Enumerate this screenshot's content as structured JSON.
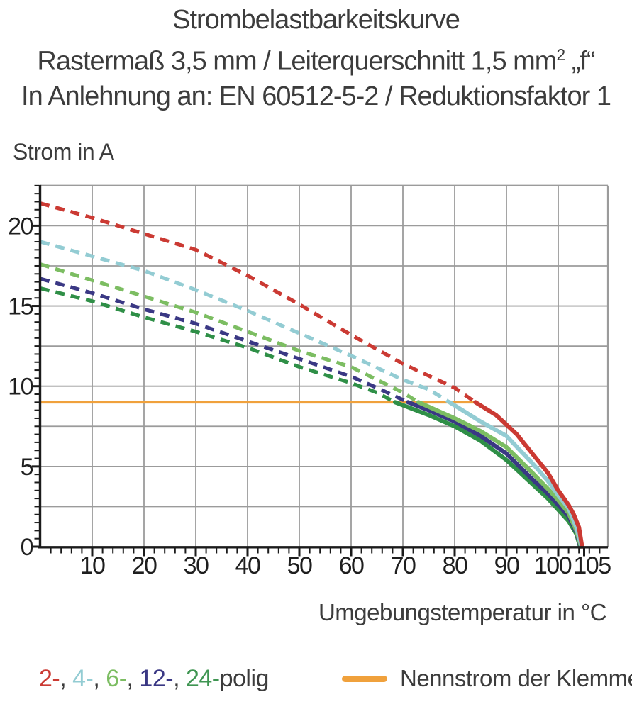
{
  "title": {
    "line1": "Strombelastbarkeitskurve",
    "line2_pre": "Rastermaß 3,5 mm / Leiterquerschnitt 1,5 mm",
    "line2_sup": "2",
    "line2_post": " „f“",
    "line3": "In Anlehnung an: EN 60512-5-2 / Reduktionsfaktor 1"
  },
  "chart_data": {
    "type": "line",
    "title": "Strombelastbarkeitskurve",
    "xlabel": "Umgebungstemperatur in °C",
    "ylabel": "Strom in A",
    "xlim": [
      0,
      109.6
    ],
    "ylim": [
      0,
      22.5
    ],
    "x_major_ticks": [
      10,
      20,
      30,
      40,
      50,
      60,
      70,
      80,
      90,
      100,
      105
    ],
    "x_gridlines": [
      10,
      20,
      30,
      40,
      50,
      60,
      70,
      80,
      90,
      100
    ],
    "x_minor_step": 2,
    "y_major_ticks": [
      0,
      5,
      10,
      15,
      20
    ],
    "y_gridlines": [
      2.5,
      5,
      7.5,
      10,
      12.5,
      15,
      17.5,
      20,
      22.5
    ],
    "y_minor_step": 0.5,
    "grid": true,
    "grid_color": "#9b9b9b",
    "axis_color": "#1b1b1b",
    "nominal_current": {
      "label": "Nennstrom der Klemme",
      "value_a": 9,
      "temp_start": 0,
      "temp_end": 84,
      "color": "#f0a13c"
    },
    "series": [
      {
        "name": "24-polig",
        "poles": 24,
        "color": "#2f8f47",
        "dashed": [
          [
            0,
            16.1
          ],
          [
            10,
            15.3
          ],
          [
            20,
            14.3
          ],
          [
            30,
            13.4
          ],
          [
            40,
            12.4
          ],
          [
            50,
            11.2
          ],
          [
            60,
            10.2
          ],
          [
            65,
            9.6
          ],
          [
            68.5,
            9.0
          ]
        ],
        "solid": [
          [
            68.5,
            9.0
          ],
          [
            75,
            8.2
          ],
          [
            80,
            7.5
          ],
          [
            85,
            6.6
          ],
          [
            90,
            5.4
          ],
          [
            95,
            3.9
          ],
          [
            98,
            3.0
          ],
          [
            100,
            2.3
          ],
          [
            102,
            1.6
          ],
          [
            103.5,
            0.8
          ],
          [
            104.2,
            0
          ]
        ]
      },
      {
        "name": "12-polig",
        "poles": 12,
        "color": "#3a3884",
        "dashed": [
          [
            0,
            16.7
          ],
          [
            10,
            15.8
          ],
          [
            20,
            14.8
          ],
          [
            30,
            13.9
          ],
          [
            40,
            12.8
          ],
          [
            50,
            11.7
          ],
          [
            60,
            10.6
          ],
          [
            65,
            9.9
          ],
          [
            71,
            9.0
          ]
        ],
        "solid": [
          [
            71,
            9.0
          ],
          [
            75,
            8.5
          ],
          [
            80,
            7.8
          ],
          [
            85,
            6.9
          ],
          [
            90,
            5.8
          ],
          [
            95,
            4.2
          ],
          [
            98,
            3.3
          ],
          [
            100,
            2.6
          ],
          [
            102,
            1.9
          ],
          [
            103.5,
            0.9
          ],
          [
            104.3,
            0
          ]
        ]
      },
      {
        "name": "6-polig",
        "poles": 6,
        "color": "#7cbd62",
        "dashed": [
          [
            0,
            17.6
          ],
          [
            10,
            16.6
          ],
          [
            20,
            15.6
          ],
          [
            30,
            14.6
          ],
          [
            40,
            13.4
          ],
          [
            50,
            12.2
          ],
          [
            60,
            11.2
          ],
          [
            65,
            10.4
          ],
          [
            70,
            9.6
          ],
          [
            73,
            9.0
          ]
        ],
        "solid": [
          [
            73,
            9.0
          ],
          [
            80,
            8.0
          ],
          [
            85,
            7.2
          ],
          [
            90,
            6.2
          ],
          [
            95,
            4.6
          ],
          [
            98,
            3.6
          ],
          [
            100,
            2.9
          ],
          [
            102,
            2.1
          ],
          [
            103.5,
            1.0
          ],
          [
            104.4,
            0
          ]
        ]
      },
      {
        "name": "4-polig",
        "poles": 4,
        "color": "#93ccd3",
        "dashed": [
          [
            0,
            19.0
          ],
          [
            10,
            18.1
          ],
          [
            20,
            17.2
          ],
          [
            30,
            16.0
          ],
          [
            40,
            14.7
          ],
          [
            50,
            13.3
          ],
          [
            60,
            11.9
          ],
          [
            70,
            10.4
          ],
          [
            75,
            9.8
          ],
          [
            79,
            9.0
          ]
        ],
        "solid": [
          [
            79,
            9.0
          ],
          [
            85,
            7.8
          ],
          [
            90,
            6.9
          ],
          [
            95,
            5.2
          ],
          [
            98,
            4.1
          ],
          [
            100,
            3.2
          ],
          [
            102,
            2.4
          ],
          [
            103.5,
            1.2
          ],
          [
            104.5,
            0
          ]
        ]
      },
      {
        "name": "2-polig",
        "poles": 2,
        "color": "#cb3a33",
        "dashed": [
          [
            0,
            21.4
          ],
          [
            10,
            20.5
          ],
          [
            20,
            19.5
          ],
          [
            30,
            18.5
          ],
          [
            40,
            16.9
          ],
          [
            50,
            15.1
          ],
          [
            60,
            13.2
          ],
          [
            70,
            11.4
          ],
          [
            80,
            9.9
          ],
          [
            84,
            9.0
          ]
        ],
        "solid": [
          [
            84,
            9.0
          ],
          [
            88,
            8.2
          ],
          [
            90,
            7.6
          ],
          [
            92,
            7.0
          ],
          [
            95,
            5.8
          ],
          [
            98,
            4.6
          ],
          [
            100,
            3.5
          ],
          [
            102,
            2.6
          ],
          [
            103,
            2.0
          ],
          [
            104,
            1.2
          ],
          [
            104.6,
            0
          ]
        ]
      }
    ]
  },
  "legend": {
    "series_parts": [
      {
        "text": "2-",
        "color": "#cb3a33"
      },
      {
        "text": ", ",
        "color": "#3c3c3c"
      },
      {
        "text": "4-",
        "color": "#93ccd3"
      },
      {
        "text": ", ",
        "color": "#3c3c3c"
      },
      {
        "text": "6-",
        "color": "#7cbd62"
      },
      {
        "text": ", ",
        "color": "#3c3c3c"
      },
      {
        "text": "12-",
        "color": "#3a3884"
      },
      {
        "text": ", ",
        "color": "#3c3c3c"
      },
      {
        "text": "24-",
        "color": "#3f9552"
      },
      {
        "text": "polig",
        "color": "#3c3c3c"
      }
    ],
    "nominal_label": "Nennstrom der Klemme"
  }
}
